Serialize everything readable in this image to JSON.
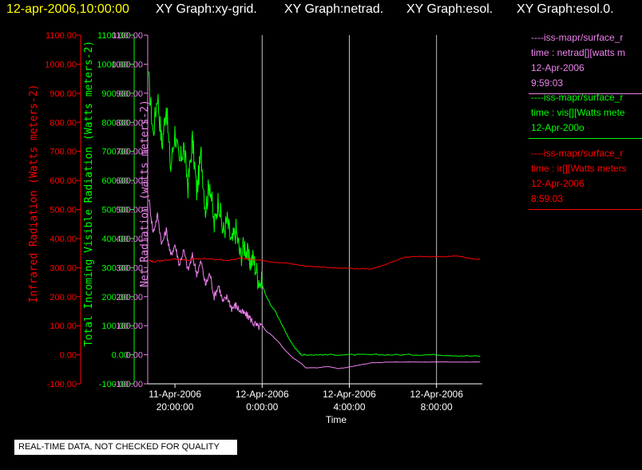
{
  "header": {
    "timestamp": "12-apr-2006,10:00:00",
    "graph_labels": [
      "XY Graph:xy-grid.",
      "XY Graph:netrad.",
      "XY Graph:esol.",
      "XY Graph:esol.0."
    ]
  },
  "colors": {
    "background": "#000000",
    "timestamp": "#ffff00",
    "graph_labels": "#ffffff",
    "infrared": "#ff0000",
    "visible": "#00ff00",
    "net": "#ee82ee",
    "grid": "#bfbfbf",
    "axis": "#ffffff"
  },
  "legend": {
    "entries": [
      {
        "series": "net",
        "lines": [
          "----iss-mapr/surface_r",
          "time : netrad[][watts m",
          "12-Apr-2006",
          "9:59:03"
        ]
      },
      {
        "series": "visible",
        "lines": [
          "----iss-mapr/surface_r",
          "time : vis[][Watts mete",
          "12-Apr-200o"
        ]
      },
      {
        "series": "infrared",
        "lines": [
          "----iss-mapr/surface_r",
          "time : ir[][Watts meters",
          "12-Apr-2006",
          "8:59:03"
        ]
      }
    ]
  },
  "footer": {
    "disclaimer": "REAL-TIME DATA, NOT CHECKED FOR QUALITY"
  },
  "chart_data": {
    "type": "line",
    "title": "",
    "xlabel": "Time",
    "x_unit": "hours from 11-Apr-2006 20:00:00",
    "xlim": [
      -1.25,
      14.1
    ],
    "x_ticks": [
      {
        "value": 0,
        "label": [
          "11-Apr-2006",
          "20:00:00"
        ]
      },
      {
        "value": 4,
        "label": [
          "12-Apr-2006",
          "0:00:00"
        ]
      },
      {
        "value": 8,
        "label": [
          "12-Apr-2006",
          "4:00:00"
        ]
      },
      {
        "value": 12,
        "label": [
          "12-Apr-2006",
          "8:00:00"
        ]
      }
    ],
    "ylim": [
      -100,
      1100
    ],
    "y_ticks": [
      "1100.00",
      "1000.00",
      "900.00",
      "800.00",
      "700.00",
      "600.00",
      "500.00",
      "400.00",
      "300.00",
      "200.00",
      "100.00",
      "0.00",
      "-100.00"
    ],
    "y_axes": [
      {
        "series": "infrared",
        "label": "Infrared Radiation (Watts meters-2)"
      },
      {
        "series": "visible",
        "label": "Total Incoming Visible Radiation (Watts meters-2)"
      },
      {
        "series": "net",
        "label": "Net Radiation (watts meters-2)"
      }
    ],
    "grid": true,
    "series": [
      {
        "key": "visible",
        "x": [
          -1.2,
          -1.0,
          -0.8,
          -0.6,
          -0.4,
          -0.2,
          0.0,
          0.2,
          0.4,
          0.6,
          0.8,
          1.0,
          1.2,
          1.4,
          1.6,
          1.8,
          2.0,
          2.2,
          2.4,
          2.6,
          2.8,
          3.0,
          3.2,
          3.4,
          3.6,
          3.8,
          4.0,
          4.2,
          4.4,
          4.6,
          4.8,
          5.0,
          5.2,
          5.4,
          5.6,
          5.8,
          6.0,
          6.5,
          7.0,
          8.0,
          9.0,
          10.0,
          11.0,
          12.0,
          13.0,
          14.0
        ],
        "y": [
          940,
          760,
          900,
          720,
          860,
          640,
          770,
          650,
          720,
          580,
          740,
          560,
          690,
          500,
          600,
          440,
          540,
          420,
          460,
          380,
          430,
          340,
          380,
          320,
          330,
          270,
          240,
          200,
          170,
          150,
          120,
          90,
          60,
          35,
          15,
          0,
          0,
          0,
          0,
          0,
          0,
          0,
          0,
          0,
          -3,
          -5
        ]
      },
      {
        "key": "net",
        "x": [
          -1.2,
          -1.0,
          -0.8,
          -0.6,
          -0.4,
          -0.2,
          0.0,
          0.2,
          0.4,
          0.6,
          0.8,
          1.0,
          1.2,
          1.4,
          1.6,
          1.8,
          2.0,
          2.2,
          2.4,
          2.6,
          2.8,
          3.0,
          3.2,
          3.4,
          3.6,
          3.8,
          4.0,
          4.2,
          4.4,
          4.6,
          4.8,
          5.0,
          5.2,
          5.4,
          5.6,
          5.8,
          6.0,
          6.5,
          7.0,
          7.5,
          8.0,
          8.5,
          9.0,
          10.0,
          11.0,
          12.0,
          13.0,
          14.0
        ],
        "y": [
          540,
          420,
          480,
          380,
          430,
          340,
          380,
          310,
          360,
          290,
          340,
          280,
          320,
          240,
          280,
          200,
          240,
          180,
          200,
          160,
          170,
          150,
          140,
          130,
          110,
          95,
          100,
          80,
          70,
          55,
          40,
          20,
          5,
          -10,
          -20,
          -30,
          -45,
          -45,
          -40,
          -48,
          -42,
          -35,
          -28,
          -25,
          -25,
          -25,
          -25,
          -25
        ]
      },
      {
        "key": "infrared",
        "x": [
          -1.2,
          -1.0,
          -0.5,
          0.0,
          0.5,
          1.0,
          1.5,
          2.0,
          2.5,
          3.0,
          3.5,
          4.0,
          4.5,
          5.0,
          5.5,
          6.0,
          6.5,
          7.0,
          7.5,
          8.0,
          8.5,
          9.0,
          9.5,
          10.0,
          10.5,
          11.0,
          11.5,
          12.0,
          12.5,
          13.0,
          13.5,
          14.0
        ],
        "y": [
          325,
          320,
          325,
          330,
          325,
          330,
          330,
          328,
          325,
          332,
          330,
          325,
          318,
          316,
          312,
          305,
          303,
          300,
          298,
          298,
          296,
          296,
          305,
          320,
          335,
          338,
          338,
          338,
          338,
          340,
          332,
          328
        ]
      }
    ]
  }
}
